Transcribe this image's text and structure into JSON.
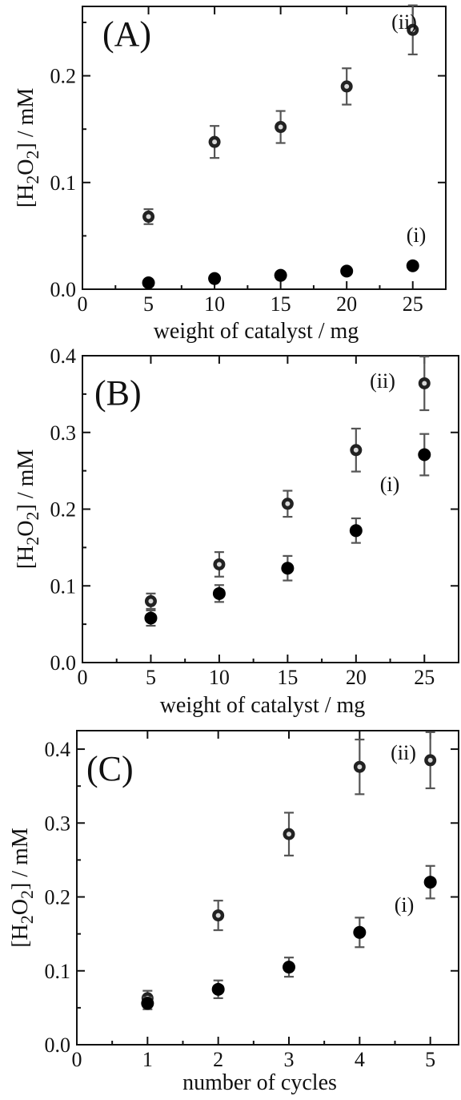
{
  "chart_data": [
    {
      "type": "scatter",
      "panel_label": "(A)",
      "xlabel": "weight of catalyst / mg",
      "ylabel_parts": [
        "[H",
        "2",
        "O",
        "2",
        "] / mM"
      ],
      "xlim": [
        0,
        27.5
      ],
      "ylim": [
        0,
        0.265
      ],
      "xticks": [
        0,
        5,
        10,
        15,
        20,
        25
      ],
      "xtick_labels": [
        "0",
        "5",
        "10",
        "15",
        "20",
        "25"
      ],
      "yticks": [
        0.0,
        0.1,
        0.2
      ],
      "ytick_labels": [
        "0.0",
        "0.1",
        "0.2"
      ],
      "series": [
        {
          "label": "(ii)",
          "marker": "open-circle",
          "x": [
            5,
            10,
            15,
            20,
            25
          ],
          "y": [
            0.068,
            0.138,
            0.152,
            0.19,
            0.243
          ],
          "err": [
            0.007,
            0.015,
            0.015,
            0.017,
            0.023
          ]
        },
        {
          "label": "(i)",
          "marker": "filled-circle",
          "x": [
            5,
            10,
            15,
            20,
            25
          ],
          "y": [
            0.006,
            0.01,
            0.013,
            0.017,
            0.022
          ],
          "err": [
            0,
            0,
            0,
            0,
            0
          ]
        }
      ]
    },
    {
      "type": "scatter",
      "panel_label": "(B)",
      "xlabel": "weight of catalyst / mg",
      "ylabel_parts": [
        "[H",
        "2",
        "O",
        "2",
        "] / mM"
      ],
      "xlim": [
        0,
        27.5
      ],
      "ylim": [
        0,
        0.4
      ],
      "xticks": [
        0,
        5,
        10,
        15,
        20,
        25
      ],
      "xtick_labels": [
        "0",
        "5",
        "10",
        "15",
        "20",
        "25"
      ],
      "yticks": [
        0.0,
        0.1,
        0.2,
        0.3,
        0.4
      ],
      "ytick_labels": [
        "0.0",
        "0.1",
        "0.2",
        "0.3",
        "0.4"
      ],
      "series": [
        {
          "label": "(ii)",
          "marker": "open-circle",
          "x": [
            5,
            10,
            15,
            20,
            25
          ],
          "y": [
            0.08,
            0.128,
            0.207,
            0.277,
            0.364
          ],
          "err": [
            0.01,
            0.016,
            0.017,
            0.028,
            0.035
          ]
        },
        {
          "label": "(i)",
          "marker": "filled-circle",
          "x": [
            5,
            10,
            15,
            20,
            25
          ],
          "y": [
            0.058,
            0.09,
            0.123,
            0.172,
            0.271
          ],
          "err": [
            0.01,
            0.011,
            0.016,
            0.016,
            0.027
          ]
        }
      ]
    },
    {
      "type": "scatter",
      "panel_label": "(C)",
      "xlabel": "number of cycles",
      "ylabel_parts": [
        "[H",
        "2",
        "O",
        "2",
        "] / mM"
      ],
      "xlim": [
        0,
        5.4
      ],
      "ylim": [
        0,
        0.425
      ],
      "xticks": [
        0,
        1,
        2,
        3,
        4,
        5
      ],
      "xtick_labels": [
        "0",
        "1",
        "2",
        "3",
        "4",
        "5"
      ],
      "yticks": [
        0.0,
        0.1,
        0.2,
        0.3,
        0.4
      ],
      "ytick_labels": [
        "0.0",
        "0.1",
        "0.2",
        "0.3",
        "0.4"
      ],
      "series": [
        {
          "label": "(ii)",
          "marker": "open-circle",
          "x": [
            1,
            2,
            3,
            4,
            5
          ],
          "y": [
            0.063,
            0.175,
            0.285,
            0.376,
            0.385
          ],
          "err": [
            0.01,
            0.02,
            0.029,
            0.037,
            0.038
          ]
        },
        {
          "label": "(i)",
          "marker": "filled-circle",
          "x": [
            1,
            2,
            3,
            4,
            5
          ],
          "y": [
            0.056,
            0.075,
            0.105,
            0.152,
            0.22
          ],
          "err": [
            0.008,
            0.012,
            0.013,
            0.02,
            0.022
          ]
        }
      ]
    }
  ]
}
